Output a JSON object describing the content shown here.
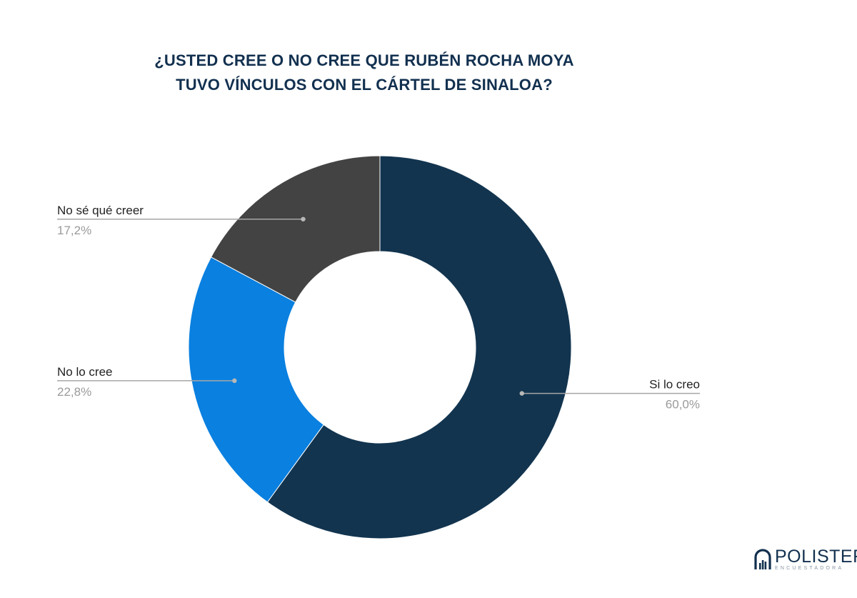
{
  "chart_data": {
    "type": "pie",
    "variant": "donut",
    "title": [
      "¿USTED CREE O NO CREE QUE RUBÉN ROCHA MOYA",
      "TUVO VÍNCULOS CON EL CÁRTEL DE SINALOA?"
    ],
    "start_angle_deg": 0,
    "direction": "clockwise",
    "slices": [
      {
        "label": "Si lo creo",
        "value": 60.0,
        "value_label": "60,0%",
        "color": "#12344f",
        "label_side": "right"
      },
      {
        "label": "No lo cree",
        "value": 22.8,
        "value_label": "22,8%",
        "color": "#0a80e0",
        "label_side": "left"
      },
      {
        "label": "No sé qué creer",
        "value": 17.2,
        "value_label": "17,2%",
        "color": "#434343",
        "label_side": "left"
      }
    ],
    "legend": "none",
    "label_color": "#222222",
    "value_color": "#9a9a9a",
    "leader_color": "#a6a6a6"
  },
  "branding": {
    "name": "POLISTER",
    "tagline": "ENCUESTADORA",
    "color": "#12304f"
  }
}
